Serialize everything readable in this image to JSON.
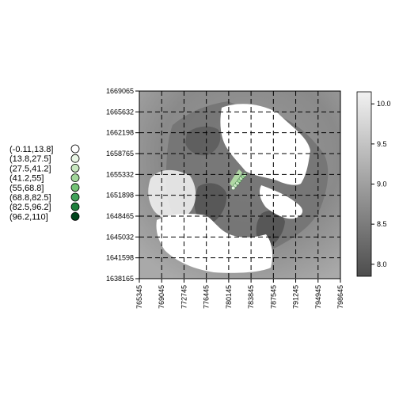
{
  "chart_data": {
    "type": "heatmap",
    "title": "",
    "xlabel": "",
    "ylabel": "",
    "x_ticks": [
      "765345",
      "769045",
      "772745",
      "776445",
      "780145",
      "783845",
      "787545",
      "791245",
      "794945",
      "798645"
    ],
    "y_ticks": [
      "1669065",
      "1665632",
      "1662198",
      "1658765",
      "1655332",
      "1651898",
      "1648465",
      "1645032",
      "1641598",
      "1638165"
    ],
    "xlim": [
      765345,
      798645
    ],
    "ylim": [
      1638165,
      1669065
    ],
    "grid": true,
    "raster_colorbar": {
      "range": [
        7.85,
        10.15
      ],
      "ticks": [
        "8.0",
        "8.5",
        "9.0",
        "9.5",
        "10.0"
      ],
      "colors": [
        "#4d4d4d",
        "#f2f2f2"
      ]
    },
    "point_legend": {
      "placement": "left",
      "entries": [
        {
          "label": "(-0.11,13.8]",
          "color": "#ffffff"
        },
        {
          "label": "(13.8,27.5]",
          "color": "#eaf6e6"
        },
        {
          "label": "(27.5,41.2]",
          "color": "#c9e8c1"
        },
        {
          "label": "(41.2,55]",
          "color": "#a2d79b"
        },
        {
          "label": "(55,68.8]",
          "color": "#74c476"
        },
        {
          "label": "(68.8,82.5]",
          "color": "#41a25a"
        },
        {
          "label": "(82.5,96.2]",
          "color": "#1f7f3c"
        },
        {
          "label": "(96.2,110]",
          "color": "#00441b"
        }
      ]
    },
    "points": [
      {
        "x": 781200,
        "y": 1653500,
        "class": 2
      },
      {
        "x": 781600,
        "y": 1653900,
        "class": 2
      },
      {
        "x": 781900,
        "y": 1654300,
        "class": 3
      },
      {
        "x": 782200,
        "y": 1654700,
        "class": 2
      },
      {
        "x": 782500,
        "y": 1655000,
        "class": 3
      },
      {
        "x": 782800,
        "y": 1655300,
        "class": 2
      },
      {
        "x": 780900,
        "y": 1653100,
        "class": 1
      }
    ]
  }
}
